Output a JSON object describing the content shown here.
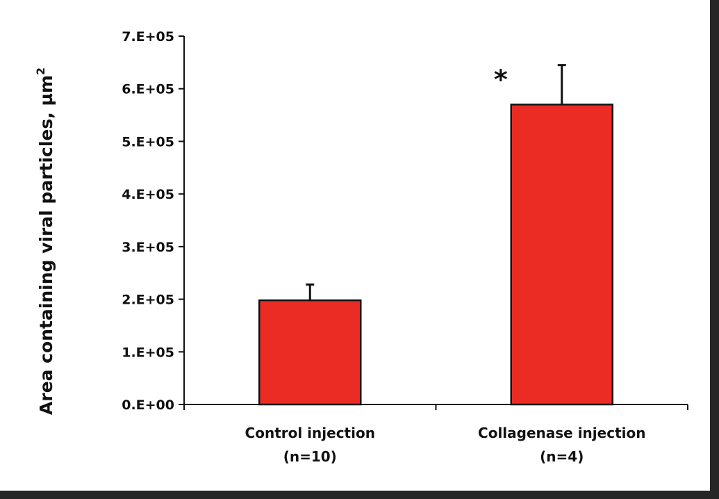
{
  "chart_data": {
    "type": "bar",
    "categories": [
      [
        "Control injection",
        "(n=10)"
      ],
      [
        "Collagenase injection",
        "(n=4)"
      ]
    ],
    "values": [
      198000,
      570000
    ],
    "error_bars": [
      30000,
      75000
    ],
    "annotations": [
      "",
      "*"
    ],
    "ylabel": "Area containing viral particles, µm",
    "ylabel_superscript": "2",
    "ylim": [
      0,
      700000
    ],
    "yticks": [
      0,
      100000,
      200000,
      300000,
      400000,
      500000,
      600000,
      700000
    ],
    "ytick_labels": [
      "0.E+00",
      "1.E+05",
      "2.E+05",
      "3.E+05",
      "4.E+05",
      "5.E+05",
      "6.E+05",
      "7.E+05"
    ],
    "grid": false,
    "legend": "none",
    "bar_color": "#ea2c24",
    "edge_color": "#111111"
  }
}
